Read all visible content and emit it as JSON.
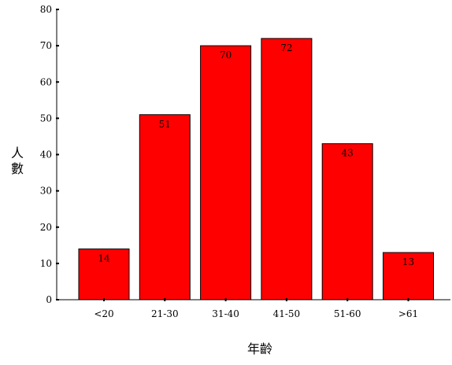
{
  "chart_data": {
    "type": "bar",
    "categories": [
      "<20",
      "21-30",
      "31-40",
      "41-50",
      "51-60",
      ">61"
    ],
    "values": [
      14,
      51,
      70,
      72,
      43,
      13
    ],
    "data_labels": [
      "14",
      "51",
      "70",
      "72",
      "43",
      "13"
    ],
    "title": "",
    "xlabel": "年齡",
    "ylabel": "人數",
    "ylim": [
      0,
      80
    ],
    "yticks": [
      0,
      10,
      20,
      30,
      40,
      50,
      60,
      70,
      80
    ],
    "grid": false,
    "legend": "none",
    "colors": {
      "bar_fill": "#ff0000",
      "bar_stroke": "#000000",
      "axis": "#000000"
    }
  }
}
